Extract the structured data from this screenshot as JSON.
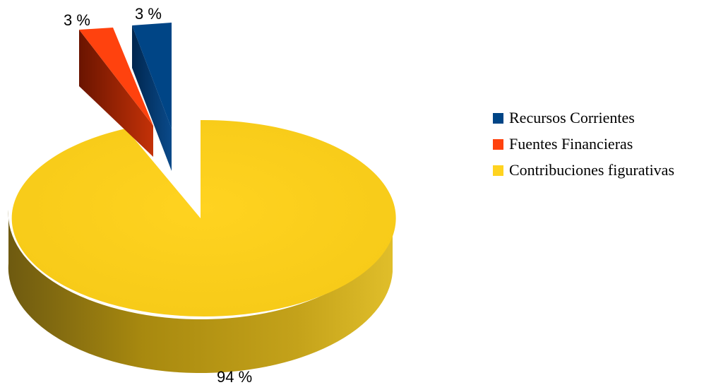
{
  "chart_data": {
    "type": "pie",
    "title": "",
    "style": "3d exploded",
    "legend_position": "right",
    "categories": [
      "Recursos Corrientes",
      "Fuentes Financieras",
      "Contribuciones figurativas"
    ],
    "values": [
      3,
      3,
      94
    ],
    "unit": "%",
    "data_labels": [
      "3 %",
      "3 %",
      "94 %"
    ],
    "colors": [
      "#004586",
      "#ff420e",
      "#ffd320"
    ]
  }
}
